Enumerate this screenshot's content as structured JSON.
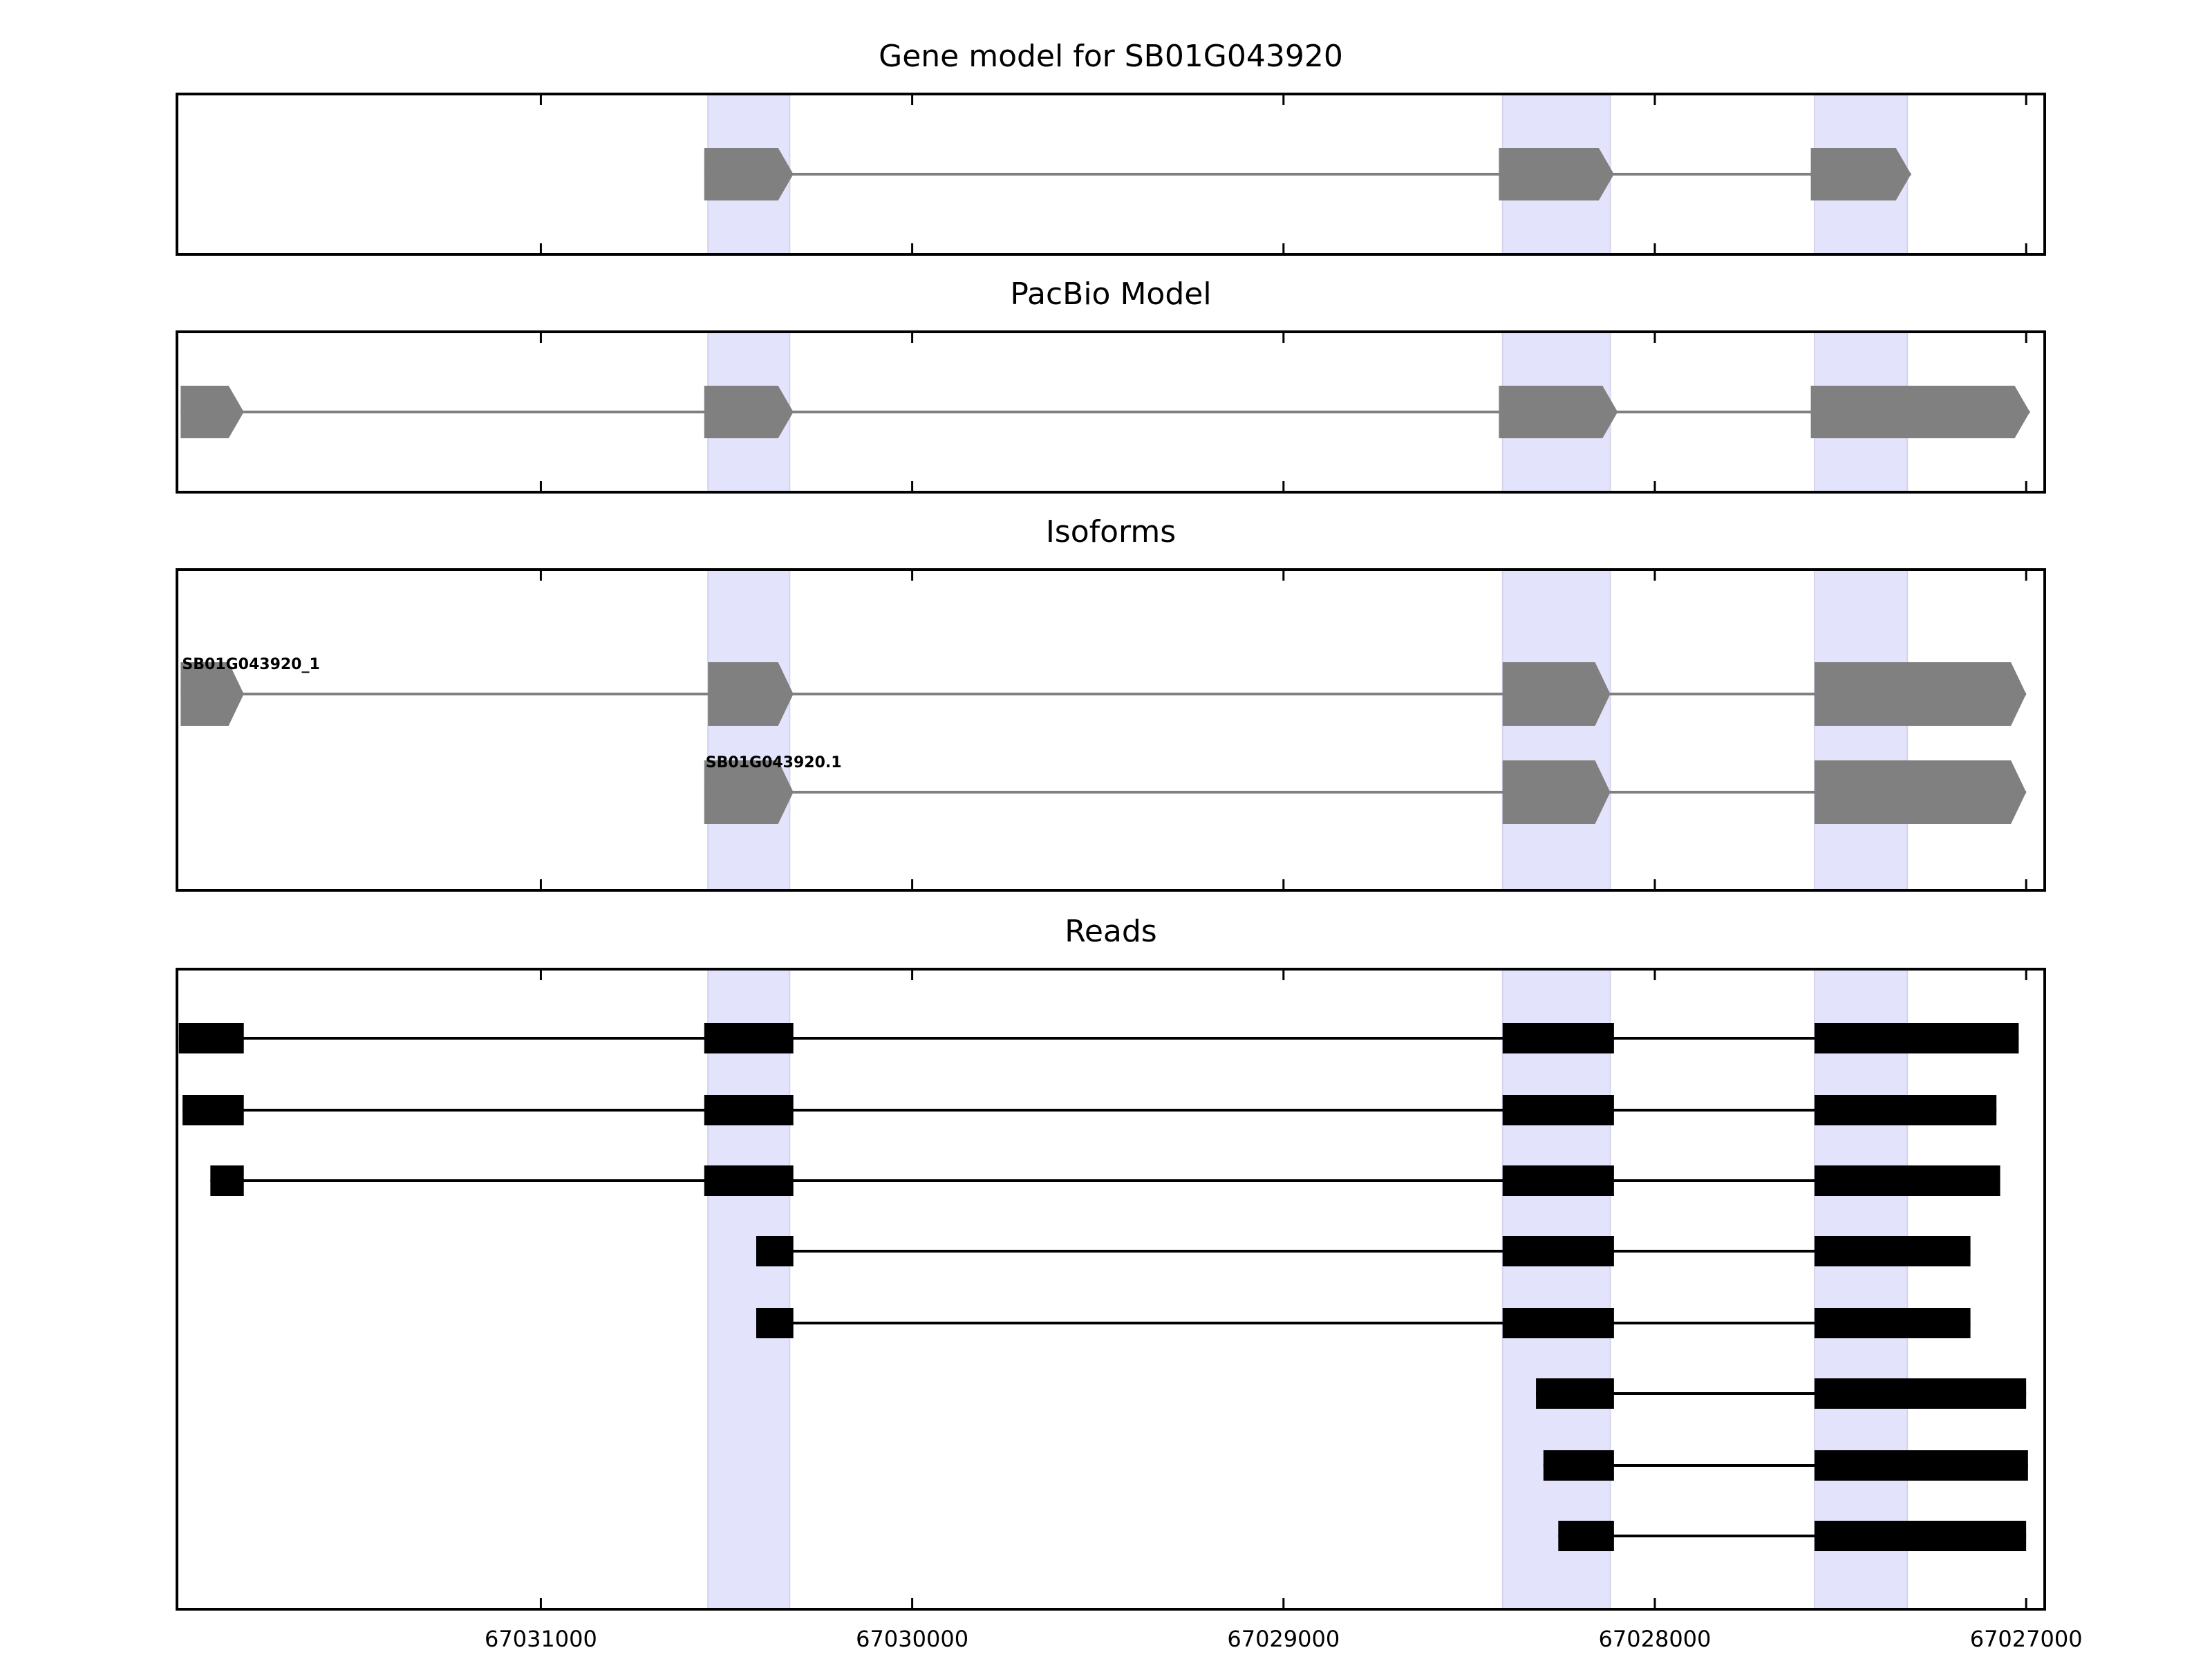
{
  "chart_data": {
    "type": "gene-structure",
    "strand": "-",
    "x_axis": {
      "reversed": true,
      "range": [
        67031980,
        67026950
      ],
      "ticks": [
        "67031000",
        "67030000",
        "67029000",
        "67028000",
        "67027000"
      ],
      "tick_values": [
        67031000,
        67030000,
        67029000,
        67028000,
        67027000
      ]
    },
    "highlight_regions": [
      [
        67030550,
        67030330
      ],
      [
        67028410,
        67028120
      ],
      [
        67027570,
        67027320
      ]
    ],
    "colors": {
      "highlight": "#e3e3fb",
      "model": "#808080",
      "read": "#000000",
      "axis": "#000000"
    },
    "panels": [
      {
        "title": "Gene model for SB01G043920",
        "tracks": [
          {
            "label": "",
            "exons": [
              [
                67030560,
                67030320
              ],
              [
                67028420,
                67028110
              ],
              [
                67027580,
                67027310
              ]
            ]
          }
        ]
      },
      {
        "title": "PacBio Model",
        "tracks": [
          {
            "label": "",
            "exons": [
              [
                67031970,
                67031800
              ],
              [
                67030560,
                67030320
              ],
              [
                67028420,
                67028100
              ],
              [
                67027580,
                67026990
              ]
            ]
          }
        ]
      },
      {
        "title": "Isoforms",
        "tracks": [
          {
            "label": "SB01G043920_1",
            "exons": [
              [
                67031970,
                67031800
              ],
              [
                67030550,
                67030320
              ],
              [
                67028410,
                67028120
              ],
              [
                67027570,
                67027000
              ]
            ]
          },
          {
            "label": "SB01G043920.1",
            "exons": [
              [
                67030560,
                67030320
              ],
              [
                67028410,
                67028120
              ],
              [
                67027570,
                67027000
              ]
            ]
          }
        ]
      },
      {
        "title": "Reads",
        "tracks": [
          {
            "label": "",
            "exons": [
              [
                67031975,
                67031800
              ],
              [
                67030560,
                67030320
              ],
              [
                67028410,
                67028110
              ],
              [
                67027570,
                67027020
              ]
            ]
          },
          {
            "label": "",
            "exons": [
              [
                67031965,
                67031800
              ],
              [
                67030560,
                67030320
              ],
              [
                67028410,
                67028110
              ],
              [
                67027570,
                67027080
              ]
            ]
          },
          {
            "label": "",
            "exons": [
              [
                67031890,
                67031800
              ],
              [
                67030560,
                67030320
              ],
              [
                67028410,
                67028110
              ],
              [
                67027570,
                67027070
              ]
            ]
          },
          {
            "label": "",
            "exons": [
              [
                67030420,
                67030320
              ],
              [
                67028410,
                67028110
              ],
              [
                67027570,
                67027150
              ]
            ]
          },
          {
            "label": "",
            "exons": [
              [
                67030420,
                67030320
              ],
              [
                67028410,
                67028110
              ],
              [
                67027570,
                67027150
              ]
            ]
          },
          {
            "label": "",
            "exons": [
              [
                67028320,
                67028110
              ],
              [
                67027570,
                67027000
              ]
            ]
          },
          {
            "label": "",
            "exons": [
              [
                67028300,
                67028110
              ],
              [
                67027570,
                67026995
              ]
            ]
          },
          {
            "label": "",
            "exons": [
              [
                67028260,
                67028110
              ],
              [
                67027570,
                67027000
              ]
            ]
          }
        ]
      }
    ]
  }
}
